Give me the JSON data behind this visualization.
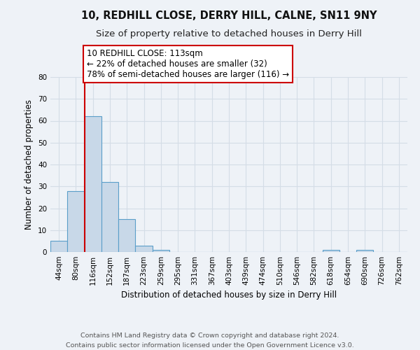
{
  "title": "10, REDHILL CLOSE, DERRY HILL, CALNE, SN11 9NY",
  "subtitle": "Size of property relative to detached houses in Derry Hill",
  "xlabel": "Distribution of detached houses by size in Derry Hill",
  "ylabel": "Number of detached properties",
  "bin_labels": [
    "44sqm",
    "80sqm",
    "116sqm",
    "152sqm",
    "187sqm",
    "223sqm",
    "259sqm",
    "295sqm",
    "331sqm",
    "367sqm",
    "403sqm",
    "439sqm",
    "474sqm",
    "510sqm",
    "546sqm",
    "582sqm",
    "618sqm",
    "654sqm",
    "690sqm",
    "726sqm",
    "762sqm"
  ],
  "bar_heights": [
    5,
    28,
    62,
    32,
    15,
    3,
    1,
    0,
    0,
    0,
    0,
    0,
    0,
    0,
    0,
    0,
    1,
    0,
    1,
    0,
    0
  ],
  "bar_color": "#c8d8e8",
  "bar_edge_color": "#5a9ec9",
  "redline_bin_index": 2,
  "annotation_line1": "10 REDHILL CLOSE: 113sqm",
  "annotation_line2": "← 22% of detached houses are smaller (32)",
  "annotation_line3": "78% of semi-detached houses are larger (116) →",
  "annotation_box_color": "#ffffff",
  "annotation_box_edge_color": "#cc0000",
  "redline_color": "#cc0000",
  "ylim": [
    0,
    80
  ],
  "yticks": [
    0,
    10,
    20,
    30,
    40,
    50,
    60,
    70,
    80
  ],
  "grid_color": "#d4dde6",
  "background_color": "#eef2f7",
  "footer_text": "Contains HM Land Registry data © Crown copyright and database right 2024.\nContains public sector information licensed under the Open Government Licence v3.0.",
  "title_fontsize": 10.5,
  "subtitle_fontsize": 9.5,
  "xlabel_fontsize": 8.5,
  "ylabel_fontsize": 8.5,
  "tick_fontsize": 7.5,
  "footer_fontsize": 6.8,
  "annot_fontsize": 8.5
}
